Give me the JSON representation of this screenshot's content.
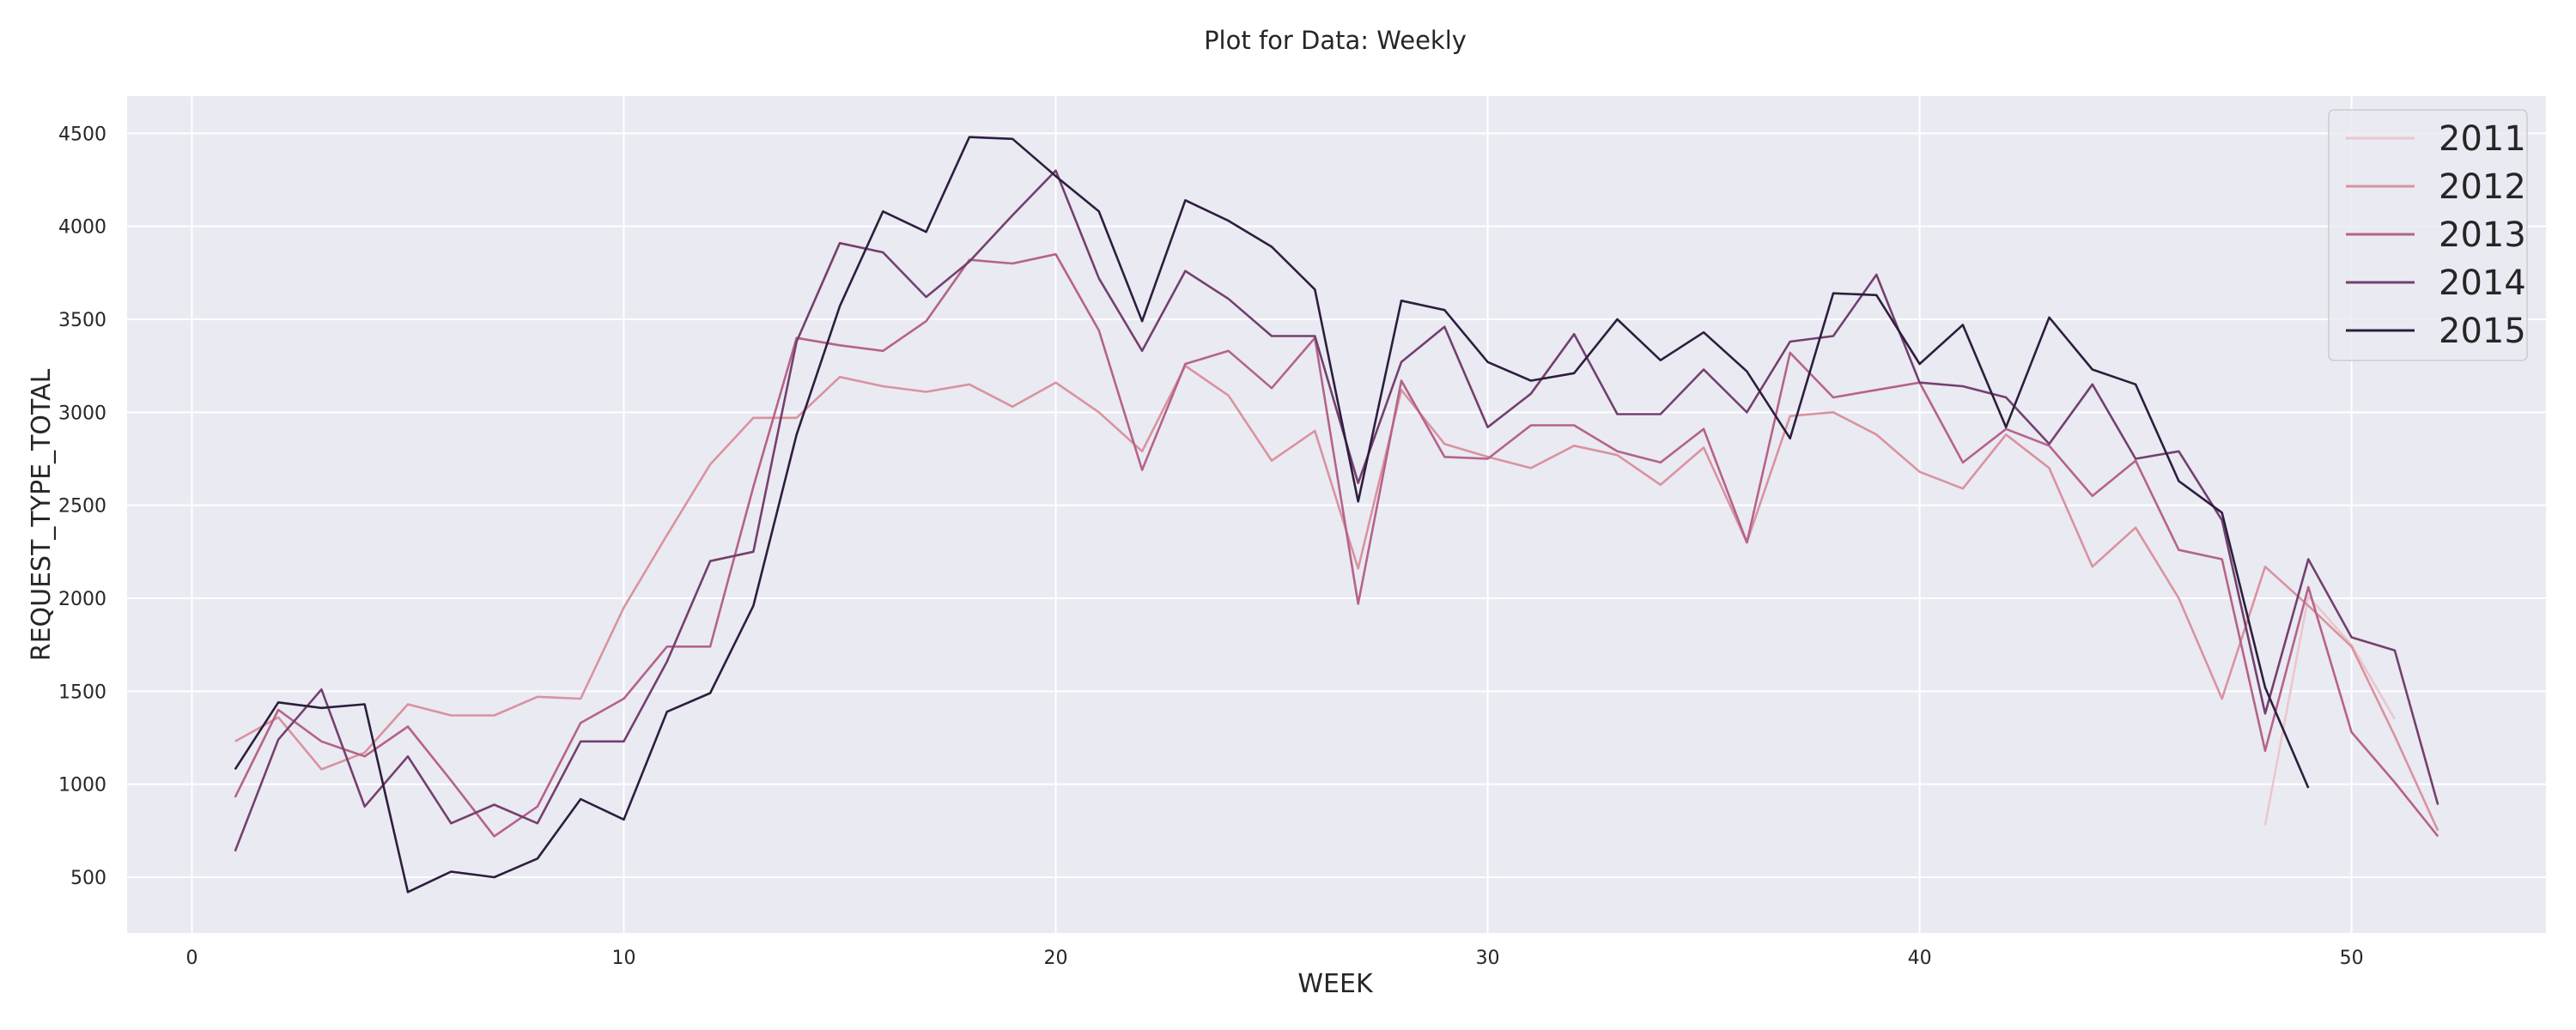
{
  "chart_data": {
    "type": "line",
    "title": "Plot for Data: Weekly",
    "xlabel": "WEEK",
    "ylabel": "REQUEST_TYPE_TOTAL",
    "xlim": [
      -1.5,
      54.5
    ],
    "ylim": [
      200,
      4700
    ],
    "xticks": [
      0,
      10,
      20,
      30,
      40,
      50
    ],
    "yticks": [
      500,
      1000,
      1500,
      2000,
      2500,
      3000,
      3500,
      4000,
      4500
    ],
    "grid": true,
    "legend_position": "top-right",
    "series": [
      {
        "name": "2011",
        "color": "#ebc7cc",
        "x": [
          48,
          49,
          50,
          51
        ],
        "y": [
          780,
          2010,
          1750,
          1350
        ]
      },
      {
        "name": "2012",
        "color": "#d9939f",
        "x": [
          1,
          2,
          3,
          4,
          5,
          6,
          7,
          8,
          9,
          10,
          11,
          12,
          13,
          14,
          15,
          16,
          17,
          18,
          19,
          20,
          21,
          22,
          23,
          24,
          25,
          26,
          27,
          28,
          29,
          30,
          31,
          32,
          33,
          34,
          35,
          36,
          37,
          38,
          39,
          40,
          41,
          42,
          43,
          44,
          45,
          46,
          47,
          48,
          49,
          50,
          51,
          52
        ],
        "y": [
          1230,
          1360,
          1080,
          1170,
          1430,
          1370,
          1370,
          1470,
          1460,
          1950,
          2340,
          2720,
          2970,
          2970,
          3190,
          3140,
          3110,
          3150,
          3030,
          3160,
          3000,
          2790,
          3250,
          3090,
          2740,
          2900,
          2160,
          3120,
          2830,
          2760,
          2700,
          2820,
          2770,
          2610,
          2810,
          2300,
          2980,
          3000,
          2880,
          2680,
          2590,
          2880,
          2700,
          2170,
          2380,
          2000,
          1460,
          2170,
          1960,
          1740,
          1260,
          750
        ]
      },
      {
        "name": "2013",
        "color": "#b5638a",
        "x": [
          1,
          2,
          3,
          4,
          5,
          6,
          7,
          8,
          9,
          10,
          11,
          12,
          13,
          14,
          15,
          16,
          17,
          18,
          19,
          20,
          21,
          22,
          23,
          24,
          25,
          26,
          27,
          28,
          29,
          30,
          31,
          32,
          33,
          34,
          35,
          36,
          37,
          38,
          39,
          40,
          41,
          42,
          43,
          44,
          45,
          46,
          47,
          48,
          49,
          50,
          51,
          52
        ],
        "y": [
          930,
          1400,
          1230,
          1150,
          1310,
          1020,
          720,
          880,
          1330,
          1460,
          1740,
          1740,
          2600,
          3400,
          3360,
          3330,
          3490,
          3820,
          3800,
          3850,
          3440,
          2690,
          3260,
          3330,
          3130,
          3400,
          1970,
          3170,
          2760,
          2750,
          2930,
          2930,
          2790,
          2730,
          2910,
          2300,
          3320,
          3080,
          3120,
          3160,
          2730,
          2910,
          2820,
          2550,
          2740,
          2260,
          2210,
          1180,
          2060,
          1280,
          1010,
          720
        ]
      },
      {
        "name": "2014",
        "color": "#74406f",
        "x": [
          1,
          2,
          3,
          4,
          5,
          6,
          7,
          8,
          9,
          10,
          11,
          12,
          13,
          14,
          15,
          16,
          17,
          18,
          19,
          20,
          21,
          22,
          23,
          24,
          25,
          26,
          27,
          28,
          29,
          30,
          31,
          32,
          33,
          34,
          35,
          36,
          37,
          38,
          39,
          40,
          41,
          42,
          43,
          44,
          45,
          46,
          47,
          48,
          49,
          50,
          51,
          52
        ],
        "y": [
          640,
          1240,
          1510,
          880,
          1150,
          790,
          890,
          790,
          1230,
          1230,
          1660,
          2200,
          2250,
          3380,
          3910,
          3860,
          3620,
          3810,
          4060,
          4300,
          3720,
          3330,
          3760,
          3610,
          3410,
          3410,
          2620,
          3270,
          3460,
          2920,
          3100,
          3420,
          2990,
          2990,
          3230,
          3000,
          3380,
          3410,
          3740,
          3160,
          3140,
          3080,
          2830,
          3150,
          2750,
          2790,
          2420,
          1380,
          2210,
          1790,
          1720,
          890
        ]
      },
      {
        "name": "2015",
        "color": "#2d1e3e",
        "x": [
          1,
          2,
          3,
          4,
          5,
          6,
          7,
          8,
          9,
          10,
          11,
          12,
          13,
          14,
          15,
          16,
          17,
          18,
          19,
          20,
          21,
          22,
          23,
          24,
          25,
          26,
          27,
          28,
          29,
          30,
          31,
          32,
          33,
          34,
          35,
          36,
          37,
          38,
          39,
          40,
          41,
          42,
          43,
          44,
          45,
          46,
          47,
          48,
          49
        ],
        "y": [
          1080,
          1440,
          1410,
          1430,
          420,
          530,
          500,
          600,
          920,
          810,
          1390,
          1490,
          1960,
          2880,
          3570,
          4080,
          3970,
          4480,
          4470,
          4270,
          4080,
          3490,
          4140,
          4030,
          3890,
          3660,
          2520,
          3600,
          3550,
          3270,
          3170,
          3210,
          3500,
          3280,
          3430,
          3220,
          2860,
          3640,
          3630,
          3260,
          3470,
          2920,
          3510,
          3230,
          3150,
          2630,
          2460,
          1520,
          980
        ]
      }
    ]
  }
}
